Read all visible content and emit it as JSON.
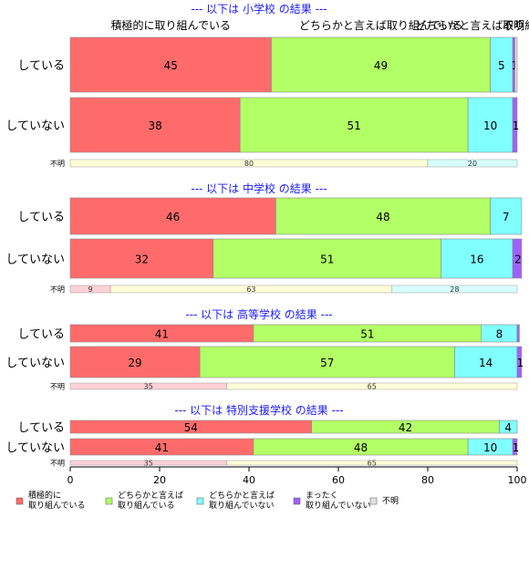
{
  "chart_data": {
    "type": "bar",
    "orientation": "horizontal-stacked",
    "xlim": [
      0,
      100
    ],
    "x_ticks": [
      "0",
      "20",
      "40",
      "60",
      "80",
      "100"
    ],
    "categories": [
      {
        "key": "c1",
        "label": "積極的に取り組んでいる",
        "legend": [
          "積極的に",
          "取り組んでいる"
        ],
        "color": "#ff6b6b"
      },
      {
        "key": "c2",
        "label": "どちらかと言えば取り組んでいる",
        "legend": [
          "どちらかと言えば",
          "取り組んでいる"
        ],
        "color": "#b2ff66"
      },
      {
        "key": "c3",
        "label": "どちらかと言えば取り組んでいない",
        "legend": [
          "どちらかと言えば",
          "取り組んでいない"
        ],
        "color": "#80ffff"
      },
      {
        "key": "c4",
        "label": "まったく取り組んでいない",
        "legend": [
          "まったく",
          "取り組んでいない"
        ],
        "color": "#a060ff"
      },
      {
        "key": "c5",
        "label": "不明",
        "legend": [
          "不明"
        ],
        "color": "#e0e0e0"
      }
    ],
    "column_headers": [
      "積極的に取り組んでいる",
      "どちらかと言えば取り組んでいる",
      "どちらかと言えば取り組んでいない",
      "不明"
    ],
    "small_row_colors": [
      "#ffd0d8",
      "#ffffd8",
      "#d8ffff"
    ],
    "panels": [
      {
        "title": "--- 以下は 小学校 の結果 ---",
        "rows": [
          {
            "label": "している",
            "values": [
              45,
              49,
              5,
              0.5,
              0.5
            ],
            "labels": [
              "45",
              "49",
              "5",
              "1",
              ""
            ]
          },
          {
            "label": "していない",
            "values": [
              38,
              51,
              10,
              1,
              0
            ],
            "labels": [
              "38",
              "51",
              "10",
              "1",
              ""
            ]
          }
        ],
        "unknown": {
          "label": "不明",
          "values": [
            0,
            80,
            20
          ],
          "labels": [
            "",
            "80",
            "20"
          ]
        }
      },
      {
        "title": "--- 以下は 中学校 の結果 ---",
        "rows": [
          {
            "label": "している",
            "values": [
              46,
              48,
              7,
              0,
              0
            ],
            "labels": [
              "46",
              "48",
              "7",
              "",
              ""
            ]
          },
          {
            "label": "していない",
            "values": [
              32,
              51,
              16,
              2,
              0
            ],
            "labels": [
              "32",
              "51",
              "16",
              "2",
              ""
            ]
          }
        ],
        "unknown": {
          "label": "不明",
          "values": [
            9,
            63,
            28
          ],
          "labels": [
            "9",
            "63",
            "28"
          ]
        }
      },
      {
        "title": "--- 以下は 高等学校 の結果 ---",
        "rows": [
          {
            "label": "している",
            "values": [
              41,
              51,
              8,
              0.5,
              0
            ],
            "labels": [
              "41",
              "51",
              "8",
              "",
              ""
            ]
          },
          {
            "label": "していない",
            "values": [
              29,
              57,
              14,
              1,
              0
            ],
            "labels": [
              "29",
              "57",
              "14",
              "1",
              ""
            ]
          }
        ],
        "unknown": {
          "label": "不明",
          "values": [
            35,
            65,
            0
          ],
          "labels": [
            "35",
            "65",
            ""
          ]
        }
      },
      {
        "title": "--- 以下は 特別支援学校 の結果 ---",
        "rows": [
          {
            "label": "している",
            "values": [
              54,
              42,
              4,
              0,
              0
            ],
            "labels": [
              "54",
              "42",
              "4",
              "",
              ""
            ]
          },
          {
            "label": "していない",
            "values": [
              41,
              48,
              10,
              1,
              0
            ],
            "labels": [
              "41",
              "48",
              "10",
              "1",
              ""
            ]
          }
        ],
        "unknown": {
          "label": "不明",
          "values": [
            35,
            65,
            0
          ],
          "labels": [
            "35",
            "65",
            ""
          ]
        }
      }
    ]
  }
}
